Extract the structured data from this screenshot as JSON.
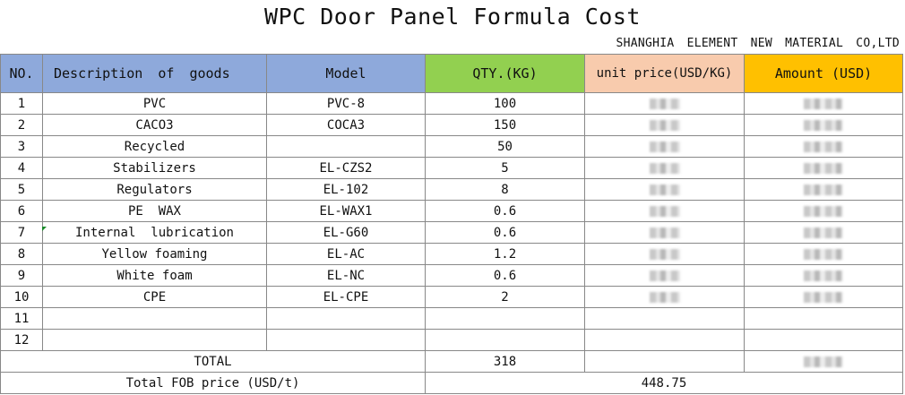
{
  "title": "WPC Door Panel Formula Cost",
  "company": "SHANGHIA  ELEMENT NEW MATERIAL CO,LTD",
  "headers": [
    "NO.",
    "Description  of  goods",
    "Model",
    "QTY.(KG)",
    "unit price(USD/KG)",
    "Amount (USD)"
  ],
  "rows": [
    {
      "no": "1",
      "desc": "PVC",
      "model": "PVC-8",
      "qty": "100"
    },
    {
      "no": "2",
      "desc": "CACO3",
      "model": "COCA3",
      "qty": "150"
    },
    {
      "no": "3",
      "desc": "Recycled",
      "model": "",
      "qty": "50"
    },
    {
      "no": "4",
      "desc": "Stabilizers",
      "model": "EL-CZS2",
      "qty": "5"
    },
    {
      "no": "5",
      "desc": "Regulators",
      "model": "EL-102",
      "qty": "8"
    },
    {
      "no": "6",
      "desc": "PE  WAX",
      "model": "EL-WAX1",
      "qty": "0.6"
    },
    {
      "no": "7",
      "desc": "Internal  lubrication",
      "model": "EL-G60",
      "qty": "0.6"
    },
    {
      "no": "8",
      "desc": "Yellow foaming",
      "model": "EL-AC",
      "qty": "1.2"
    },
    {
      "no": "9",
      "desc": "White foam",
      "model": "EL-NC",
      "qty": "0.6"
    },
    {
      "no": "10",
      "desc": "CPE",
      "model": "EL-CPE",
      "qty": "2"
    },
    {
      "no": "11",
      "desc": "",
      "model": "",
      "qty": ""
    },
    {
      "no": "12",
      "desc": "",
      "model": "",
      "qty": ""
    }
  ],
  "total": {
    "label": "TOTAL",
    "qty": "318"
  },
  "fob": {
    "label": "Total FOB price (USD/t)",
    "value": "448.75"
  },
  "colors": {
    "header_blue": "#8ea9db",
    "header_green": "#92d050",
    "header_peach": "#f8cbad",
    "header_orange": "#ffc000"
  }
}
